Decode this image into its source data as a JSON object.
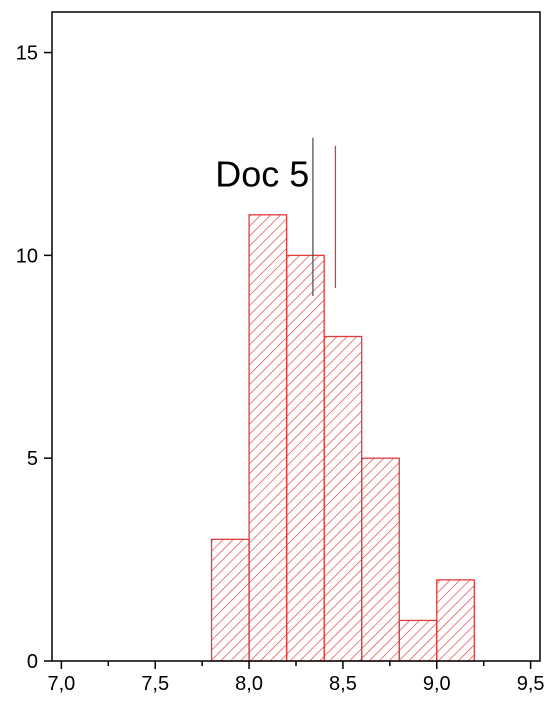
{
  "chart_data": {
    "type": "bar",
    "title": "",
    "xlabel": "",
    "ylabel": "",
    "xlim": [
      6.95,
      9.55
    ],
    "ylim": [
      0,
      16
    ],
    "x_ticks": [
      {
        "value": 7.0,
        "label": "7,0"
      },
      {
        "value": 7.5,
        "label": "7,5"
      },
      {
        "value": 8.0,
        "label": "8,0"
      },
      {
        "value": 8.5,
        "label": "8,5"
      },
      {
        "value": 9.0,
        "label": "9,0"
      },
      {
        "value": 9.5,
        "label": "9,5"
      }
    ],
    "y_ticks": [
      {
        "value": 0,
        "label": "0"
      },
      {
        "value": 5,
        "label": "5"
      },
      {
        "value": 10,
        "label": "10"
      },
      {
        "value": 15,
        "label": "15"
      }
    ],
    "bin_width": 0.2,
    "bins": [
      {
        "x_start": 7.8,
        "x_end": 8.0,
        "count": 3
      },
      {
        "x_start": 8.0,
        "x_end": 8.2,
        "count": 11
      },
      {
        "x_start": 8.2,
        "x_end": 8.4,
        "count": 10
      },
      {
        "x_start": 8.4,
        "x_end": 8.6,
        "count": 8
      },
      {
        "x_start": 8.6,
        "x_end": 8.8,
        "count": 5
      },
      {
        "x_start": 8.8,
        "x_end": 9.0,
        "count": 1
      },
      {
        "x_start": 9.0,
        "x_end": 9.2,
        "count": 2
      }
    ],
    "bar_style": {
      "fill": "hatched",
      "color": "#e03c3c"
    },
    "markers": [
      {
        "x": 8.34,
        "y_from": 9.0,
        "y_to": 12.9,
        "color": "#555555"
      },
      {
        "x": 8.46,
        "y_from": 9.2,
        "y_to": 12.7,
        "color": "#e03c3c"
      }
    ],
    "annotations": [
      {
        "text": "Doc 5",
        "x": 7.82,
        "y": 11.7
      }
    ],
    "grid": false,
    "legend": "none"
  }
}
